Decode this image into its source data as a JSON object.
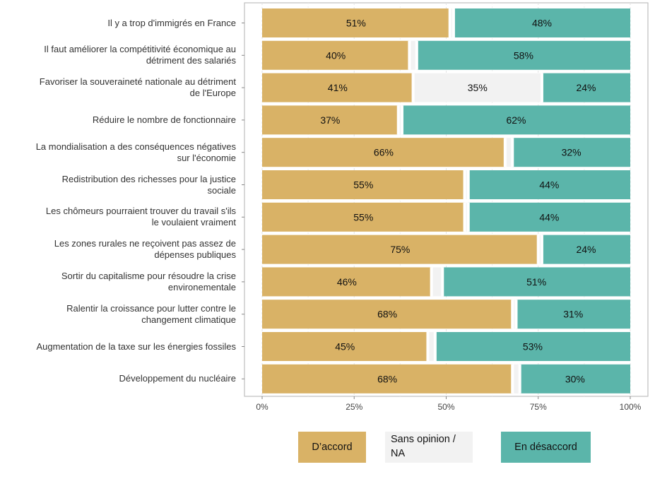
{
  "chart_data": {
    "type": "bar",
    "stacked": true,
    "orientation": "horizontal",
    "categories": [
      "Il y a trop d'immigrés en France",
      "Il faut améliorer la compétitivité économique au\ndétriment des salariés",
      "Favoriser la souveraineté nationale au détriment\nde l'Europe",
      "Réduire le nombre de fonctionnaire",
      "La mondialisation a des conséquences négatives\nsur l'économie",
      "Redistribution des richesses pour la justice\nsociale",
      "Les chômeurs pourraient trouver du travail s'ils\nle voulaient vraiment",
      "Les zones rurales ne reçoivent pas assez de\ndépenses publiques",
      "Sortir du capitalisme pour résoudre la crise\nenvironementale",
      "Ralentir la croissance pour lutter contre le\nchangement climatique",
      "Augmentation de la taxe sur les énergies fossiles",
      "Développement du nucléaire"
    ],
    "series": [
      {
        "name": "D’accord",
        "color": "#D9B266",
        "values": [
          51,
          40,
          41,
          37,
          66,
          55,
          55,
          75,
          46,
          68,
          45,
          68
        ],
        "labels": [
          "51%",
          "40%",
          "41%",
          "37%",
          "66%",
          "55%",
          "55%",
          "75%",
          "46%",
          "68%",
          "45%",
          "68%"
        ]
      },
      {
        "name": "Sans opinion / NA",
        "color": "#F2F2F2",
        "values": [
          1,
          2,
          35,
          1,
          2,
          1,
          1,
          1,
          3,
          1,
          2,
          2
        ],
        "labels": [
          "",
          "",
          "35%",
          "",
          "",
          "",
          "",
          "",
          "",
          "",
          "",
          ""
        ]
      },
      {
        "name": "En désaccord",
        "color": "#5BB5AA",
        "values": [
          48,
          58,
          24,
          62,
          32,
          44,
          44,
          24,
          51,
          31,
          53,
          30
        ],
        "labels": [
          "48%",
          "58%",
          "24%",
          "62%",
          "32%",
          "44%",
          "44%",
          "24%",
          "51%",
          "31%",
          "53%",
          "30%"
        ]
      }
    ],
    "xlim": [
      0,
      100
    ],
    "xticks": [
      0,
      25,
      50,
      75,
      100
    ],
    "xtick_labels": [
      "0%",
      "25%",
      "50%",
      "75%",
      "100%"
    ],
    "grid": true,
    "legend_position": "bottom",
    "title": "",
    "xlabel": "",
    "ylabel": ""
  }
}
